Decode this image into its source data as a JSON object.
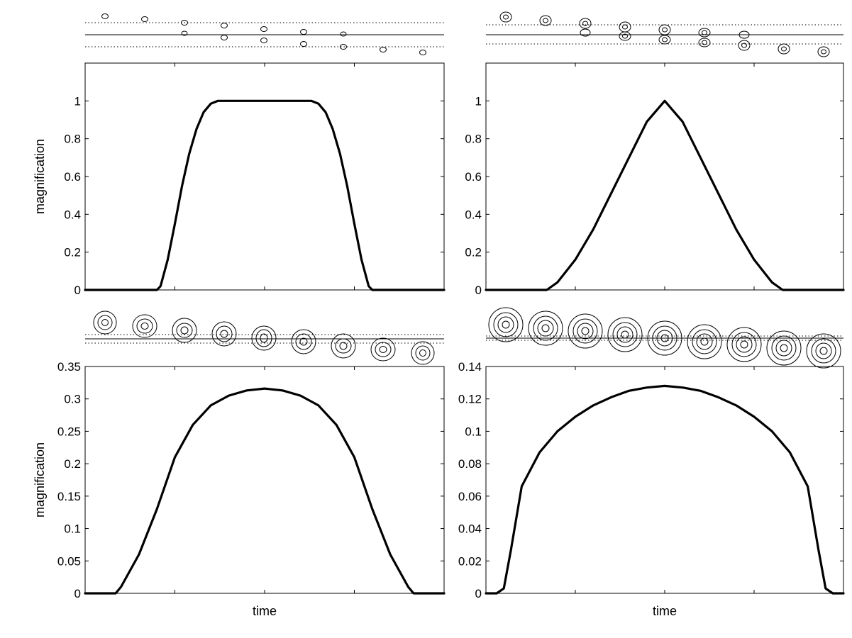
{
  "chart_data": [
    {
      "type": "line",
      "panel": "top-left",
      "xlabel": "",
      "ylabel": "magnification",
      "ylim": [
        0,
        1.2
      ],
      "yticks": [
        0,
        0.2,
        0.4,
        0.6,
        0.8,
        1
      ],
      "xlim": [
        0,
        1
      ],
      "x_tick_count": 5,
      "x": [
        0,
        0.05,
        0.1,
        0.15,
        0.2,
        0.21,
        0.23,
        0.25,
        0.27,
        0.29,
        0.31,
        0.33,
        0.35,
        0.37,
        0.375,
        0.4,
        0.45,
        0.5,
        0.55,
        0.6,
        0.625,
        0.63,
        0.65,
        0.67,
        0.69,
        0.71,
        0.73,
        0.75,
        0.77,
        0.79,
        0.8,
        0.85,
        0.9,
        0.95,
        1.0
      ],
      "values": [
        0,
        0,
        0,
        0,
        0,
        0.02,
        0.16,
        0.35,
        0.55,
        0.72,
        0.85,
        0.94,
        0.985,
        1.0,
        1.0,
        1.0,
        1.0,
        1.0,
        1.0,
        1.0,
        1.0,
        1.0,
        0.985,
        0.94,
        0.85,
        0.72,
        0.55,
        0.35,
        0.16,
        0.02,
        0,
        0,
        0,
        0,
        0
      ],
      "grid": false
    },
    {
      "type": "line",
      "panel": "top-right",
      "xlabel": "",
      "ylabel": "",
      "ylim": [
        0,
        1.2
      ],
      "yticks": [
        0,
        0.2,
        0.4,
        0.6,
        0.8,
        1
      ],
      "xlim": [
        0,
        1
      ],
      "x_tick_count": 5,
      "x": [
        0,
        0.05,
        0.1,
        0.15,
        0.17,
        0.2,
        0.25,
        0.3,
        0.35,
        0.4,
        0.45,
        0.5,
        0.55,
        0.6,
        0.65,
        0.7,
        0.75,
        0.8,
        0.83,
        0.85,
        0.9,
        0.95,
        1.0
      ],
      "values": [
        0,
        0,
        0,
        0,
        0,
        0.04,
        0.16,
        0.32,
        0.51,
        0.7,
        0.89,
        1.0,
        0.89,
        0.7,
        0.51,
        0.32,
        0.16,
        0.04,
        0,
        0,
        0,
        0,
        0
      ],
      "grid": false
    },
    {
      "type": "line",
      "panel": "bottom-left",
      "xlabel": "time",
      "ylabel": "magnification",
      "ylim": [
        0,
        0.35
      ],
      "yticks": [
        0,
        0.05,
        0.1,
        0.15,
        0.2,
        0.25,
        0.3,
        0.35
      ],
      "ytick_labels": [
        "0",
        "0.05",
        "0.1",
        "0.15",
        "0.2",
        "0.25",
        "0.3",
        "0.35"
      ],
      "xlim": [
        0,
        1
      ],
      "x_tick_count": 5,
      "x": [
        0,
        0.05,
        0.085,
        0.1,
        0.15,
        0.2,
        0.25,
        0.3,
        0.35,
        0.4,
        0.45,
        0.5,
        0.55,
        0.6,
        0.65,
        0.7,
        0.75,
        0.8,
        0.85,
        0.9,
        0.915,
        0.95,
        1.0
      ],
      "values": [
        0,
        0,
        0,
        0.01,
        0.06,
        0.13,
        0.21,
        0.26,
        0.29,
        0.305,
        0.313,
        0.316,
        0.313,
        0.305,
        0.29,
        0.26,
        0.21,
        0.13,
        0.06,
        0.01,
        0,
        0,
        0
      ],
      "grid": false
    },
    {
      "type": "line",
      "panel": "bottom-right",
      "xlabel": "time",
      "ylabel": "",
      "ylim": [
        0,
        0.14
      ],
      "yticks": [
        0,
        0.02,
        0.04,
        0.06,
        0.08,
        0.1,
        0.12,
        0.14
      ],
      "ytick_labels": [
        "0",
        "0.02",
        "0.04",
        "0.06",
        "0.08",
        "0.1",
        "0.12",
        "0.14"
      ],
      "xlim": [
        0,
        1
      ],
      "x_tick_count": 5,
      "x": [
        0,
        0.03,
        0.05,
        0.07,
        0.1,
        0.15,
        0.2,
        0.25,
        0.3,
        0.35,
        0.4,
        0.45,
        0.5,
        0.55,
        0.6,
        0.65,
        0.7,
        0.75,
        0.8,
        0.85,
        0.9,
        0.93,
        0.95,
        0.97,
        1.0
      ],
      "values": [
        0,
        0,
        0.003,
        0.027,
        0.066,
        0.087,
        0.1,
        0.109,
        0.116,
        0.121,
        0.125,
        0.127,
        0.128,
        0.127,
        0.125,
        0.121,
        0.116,
        0.109,
        0.1,
        0.087,
        0.066,
        0.027,
        0.003,
        0,
        0
      ],
      "grid": false
    }
  ]
}
